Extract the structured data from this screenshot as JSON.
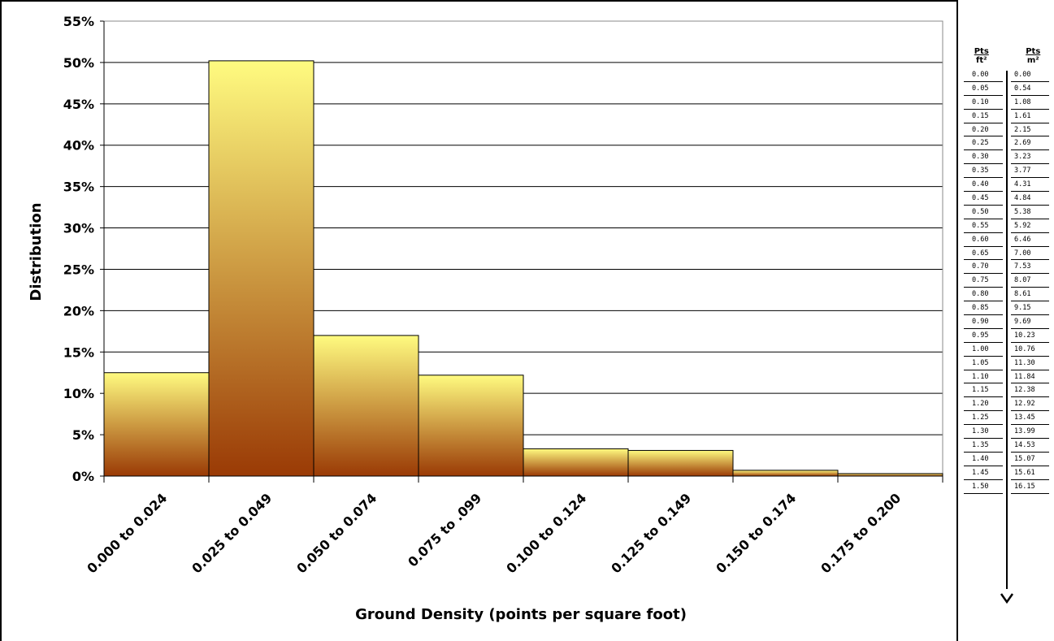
{
  "chart_data": {
    "type": "bar",
    "title": "",
    "xlabel": "Ground Density (points per square foot)",
    "ylabel": "Distribution",
    "categories": [
      "0.000 to 0.024",
      "0.025 to 0.049",
      "0.050 to 0.074",
      "0.075 to .099",
      "0.100 to 0.124",
      "0.125 to 0.149",
      "0.150 to 0.174",
      "0.175 to 0.200"
    ],
    "values": [
      12.5,
      50.2,
      17.0,
      12.2,
      3.3,
      3.1,
      0.7,
      0.3
    ],
    "value_unit": "percent",
    "ylim": [
      0,
      55
    ],
    "yticks": [
      "0%",
      "5%",
      "10%",
      "15%",
      "20%",
      "25%",
      "30%",
      "35%",
      "40%",
      "45%",
      "50%",
      "55%"
    ],
    "grid": true,
    "legend": "none",
    "colors": {
      "bar_top": "#FFFB80",
      "bar_bottom": "#9A3A05",
      "bar_border": "#000000",
      "grid": "#000000"
    }
  },
  "conversion_table": {
    "ft_header_1": "Pts",
    "ft_header_2": "ft²",
    "m_header_1": "Pts",
    "m_header_2": "m²",
    "rows": [
      {
        "ft": "0.00",
        "m": "0.00"
      },
      {
        "ft": "0.05",
        "m": "0.54"
      },
      {
        "ft": "0.10",
        "m": "1.08"
      },
      {
        "ft": "0.15",
        "m": "1.61"
      },
      {
        "ft": "0.20",
        "m": "2.15"
      },
      {
        "ft": "0.25",
        "m": "2.69"
      },
      {
        "ft": "0.30",
        "m": "3.23"
      },
      {
        "ft": "0.35",
        "m": "3.77"
      },
      {
        "ft": "0.40",
        "m": "4.31"
      },
      {
        "ft": "0.45",
        "m": "4.84"
      },
      {
        "ft": "0.50",
        "m": "5.38"
      },
      {
        "ft": "0.55",
        "m": "5.92"
      },
      {
        "ft": "0.60",
        "m": "6.46"
      },
      {
        "ft": "0.65",
        "m": "7.00"
      },
      {
        "ft": "0.70",
        "m": "7.53"
      },
      {
        "ft": "0.75",
        "m": "8.07"
      },
      {
        "ft": "0.80",
        "m": "8.61"
      },
      {
        "ft": "0.85",
        "m": "9.15"
      },
      {
        "ft": "0.90",
        "m": "9.69"
      },
      {
        "ft": "0.95",
        "m": "10.23"
      },
      {
        "ft": "1.00",
        "m": "10.76"
      },
      {
        "ft": "1.05",
        "m": "11.30"
      },
      {
        "ft": "1.10",
        "m": "11.84"
      },
      {
        "ft": "1.15",
        "m": "12.38"
      },
      {
        "ft": "1.20",
        "m": "12.92"
      },
      {
        "ft": "1.25",
        "m": "13.45"
      },
      {
        "ft": "1.30",
        "m": "13.99"
      },
      {
        "ft": "1.35",
        "m": "14.53"
      },
      {
        "ft": "1.40",
        "m": "15.07"
      },
      {
        "ft": "1.45",
        "m": "15.61"
      },
      {
        "ft": "1.50",
        "m": "16.15"
      }
    ]
  }
}
